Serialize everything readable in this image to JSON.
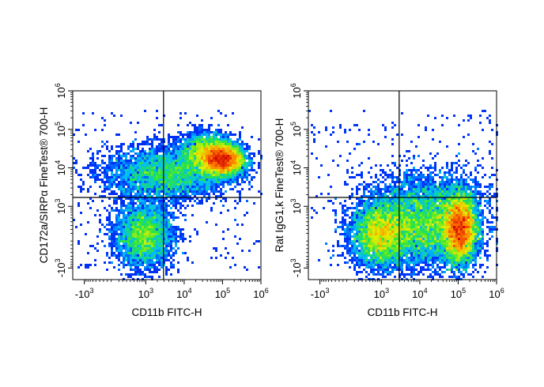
{
  "chart_data": [
    {
      "type": "scatter",
      "subtype": "flow-cytometry density plot",
      "xlabel": "CD11b FITC-H",
      "ylabel": "CD172a/SIRPα FineTest® 700-H",
      "x_scale": "biexponential",
      "y_scale": "biexponential",
      "xlim": [
        -2000,
        1000000
      ],
      "ylim": [
        -2000,
        1000000
      ],
      "x_ticks": [
        {
          "base": "-10",
          "exp": "3",
          "value": -1000
        },
        {
          "base": "10",
          "exp": "3",
          "value": 1000
        },
        {
          "base": "10",
          "exp": "4",
          "value": 10000
        },
        {
          "base": "10",
          "exp": "5",
          "value": 100000
        },
        {
          "base": "10",
          "exp": "6",
          "value": 1000000
        }
      ],
      "y_ticks": [
        {
          "base": "-10",
          "exp": "3",
          "value": -1000
        },
        {
          "base": "10",
          "exp": "3",
          "value": 1000
        },
        {
          "base": "10",
          "exp": "4",
          "value": 10000
        },
        {
          "base": "10",
          "exp": "5",
          "value": 100000
        },
        {
          "base": "10",
          "exp": "6",
          "value": 1000000
        }
      ],
      "gates": {
        "x": 2900,
        "y": 1700
      },
      "populations": [
        {
          "x": 900,
          "y": 50,
          "spread_x": 0.38,
          "spread_y": 0.42,
          "weight": 0.22
        },
        {
          "x": 100000,
          "y": 16000,
          "spread_x": 0.28,
          "spread_y": 0.2,
          "weight": 0.34
        },
        {
          "x": 40000,
          "y": 25000,
          "spread_x": 0.35,
          "spread_y": 0.25,
          "weight": 0.16
        },
        {
          "x": 3500,
          "y": 7000,
          "spread_x": 0.8,
          "spread_y": 0.35,
          "weight": 0.26
        }
      ],
      "grid": false,
      "legend": "none"
    },
    {
      "type": "scatter",
      "subtype": "flow-cytometry density plot",
      "xlabel": "CD11b FITC-H",
      "ylabel": "Rat IgG1,k FineTest® 700-H",
      "x_scale": "biexponential",
      "y_scale": "biexponential",
      "xlim": [
        -2000,
        1000000
      ],
      "ylim": [
        -2000,
        1000000
      ],
      "x_ticks": [
        {
          "base": "-10",
          "exp": "3",
          "value": -1000
        },
        {
          "base": "10",
          "exp": "3",
          "value": 1000
        },
        {
          "base": "10",
          "exp": "4",
          "value": 10000
        },
        {
          "base": "10",
          "exp": "5",
          "value": 100000
        },
        {
          "base": "10",
          "exp": "6",
          "value": 1000000
        }
      ],
      "y_ticks": [
        {
          "base": "-10",
          "exp": "3",
          "value": -1000
        },
        {
          "base": "10",
          "exp": "3",
          "value": 1000
        },
        {
          "base": "10",
          "exp": "4",
          "value": 10000
        },
        {
          "base": "10",
          "exp": "5",
          "value": 100000
        },
        {
          "base": "10",
          "exp": "6",
          "value": 1000000
        }
      ],
      "gates": {
        "x": 2900,
        "y": 1700
      },
      "populations": [
        {
          "x": 900,
          "y": 70,
          "spread_x": 0.38,
          "spread_y": 0.42,
          "weight": 0.24
        },
        {
          "x": 110000,
          "y": 220,
          "spread_x": 0.22,
          "spread_y": 0.45,
          "weight": 0.36
        },
        {
          "x": 12000,
          "y": 250,
          "spread_x": 0.7,
          "spread_y": 0.5,
          "weight": 0.32
        },
        {
          "x": 20000,
          "y": 1800,
          "spread_x": 0.9,
          "spread_y": 0.4,
          "weight": 0.08
        }
      ],
      "grid": false,
      "legend": "none"
    }
  ]
}
